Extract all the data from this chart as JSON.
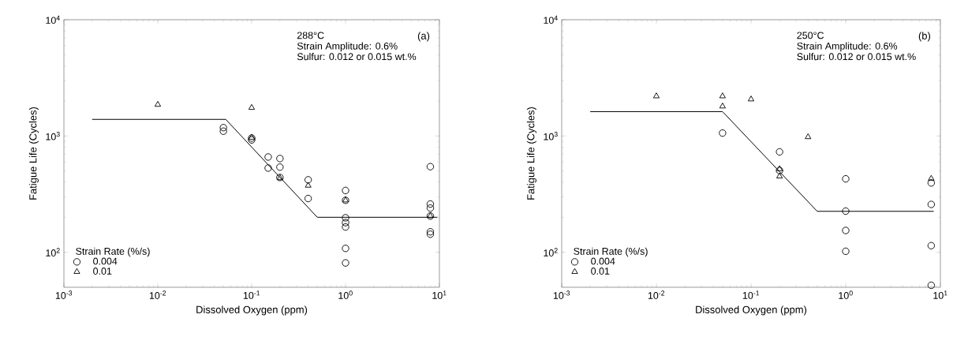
{
  "chart_data": [
    {
      "type": "scatter",
      "xlabel": "Dissolved Oxygen (ppm)",
      "ylabel": "Fatigue Life (Cycles)",
      "legend_title": "Strain Rate (%/s)",
      "legend": "bottom left",
      "log": "xy",
      "xlim": [
        0.001,
        10
      ],
      "ylim": [
        50,
        10000
      ],
      "xticks": [
        {
          "value": 0.001,
          "label": "10$^{-3}$"
        },
        {
          "value": 0.01,
          "label": "10$^{-2}$"
        },
        {
          "value": 0.1,
          "label": "10$^{-1}$"
        },
        {
          "value": 1,
          "label": "10$^{0}$"
        },
        {
          "value": 10,
          "label": "10$^{1}$"
        }
      ],
      "yticks": [
        {
          "value": 100,
          "label": "10$^{2}$"
        },
        {
          "value": 1000,
          "label": "10$^{3}$"
        },
        {
          "value": 10000,
          "label": "10$^{4}$"
        }
      ],
      "annotations": [
        "288°C",
        "Strain Amplitude: 0.6%",
        "Sulfur: 0.012 or 0.015 wt.%",
        "(a)"
      ],
      "series": [
        {
          "name": "0.004",
          "marker": "circle",
          "color": "#000000",
          "x": [
            0.05,
            0.05,
            0.1,
            0.1,
            0.15,
            0.15,
            0.2,
            0.2,
            0.2,
            0.4,
            0.4,
            1,
            1,
            1,
            1,
            1,
            1,
            1,
            8,
            8,
            8,
            8,
            8,
            8
          ],
          "values": [
            1180,
            1100,
            925,
            960,
            660,
            530,
            640,
            540,
            440,
            420,
            290,
            340,
            280,
            198,
            180,
            165,
            108,
            81,
            545,
            260,
            240,
            205,
            150,
            143
          ]
        },
        {
          "name": "0.01",
          "marker": "triangle",
          "color": "#000000",
          "x": [
            0.01,
            0.1,
            0.1,
            0.2,
            0.4,
            1,
            8
          ],
          "values": [
            1860,
            1750,
            970,
            435,
            375,
            280,
            205
          ]
        },
        {
          "type": "line",
          "marker": "none",
          "line_style": "solid",
          "color": "#000000",
          "x": [
            0.002,
            0.053,
            0.5,
            9.5
          ],
          "values": [
            1390,
            1390,
            200,
            200
          ]
        }
      ]
    },
    {
      "type": "scatter",
      "xlabel": "Dissolved Oxygen (ppm)",
      "ylabel": "Fatigue Life (Cycles)",
      "legend_title": "Strain Rate (%/s)",
      "legend": "bottom left",
      "log": "xy",
      "xlim": [
        0.001,
        10
      ],
      "ylim": [
        50,
        10000
      ],
      "xticks": [
        {
          "value": 0.001,
          "label": "10$^{-3}$"
        },
        {
          "value": 0.01,
          "label": "10$^{-2}$"
        },
        {
          "value": 0.1,
          "label": "10$^{-1}$"
        },
        {
          "value": 1,
          "label": "10$^{0}$"
        },
        {
          "value": 10,
          "label": "10$^{1}$"
        }
      ],
      "yticks": [
        {
          "value": 100,
          "label": "10$^{2}$"
        },
        {
          "value": 1000,
          "label": "10$^{3}$"
        },
        {
          "value": 10000,
          "label": "10$^{4}$"
        }
      ],
      "annotations": [
        "250°C",
        "Strain Amplitude: 0.6%",
        "Sulfur: 0.012 or 0.015 wt.%",
        "(b)"
      ],
      "series": [
        {
          "name": "0.004",
          "marker": "circle",
          "color": "#000000",
          "x": [
            0.05,
            0.2,
            0.2,
            1,
            1,
            1,
            1,
            8,
            8,
            8,
            8
          ],
          "values": [
            1060,
            730,
            505,
            428,
            226,
            154,
            102,
            395,
            258,
            114,
            52
          ]
        },
        {
          "name": "0.01",
          "marker": "triangle",
          "color": "#000000",
          "x": [
            0.01,
            0.05,
            0.05,
            0.1,
            0.2,
            0.2,
            0.4,
            8
          ],
          "values": [
            2200,
            2200,
            1800,
            2070,
            520,
            450,
            980,
            430
          ]
        },
        {
          "type": "line",
          "marker": "none",
          "line_style": "solid",
          "color": "#000000",
          "x": [
            0.002,
            0.05,
            0.5,
            8.5
          ],
          "values": [
            1620,
            1620,
            225,
            225
          ]
        }
      ]
    }
  ]
}
